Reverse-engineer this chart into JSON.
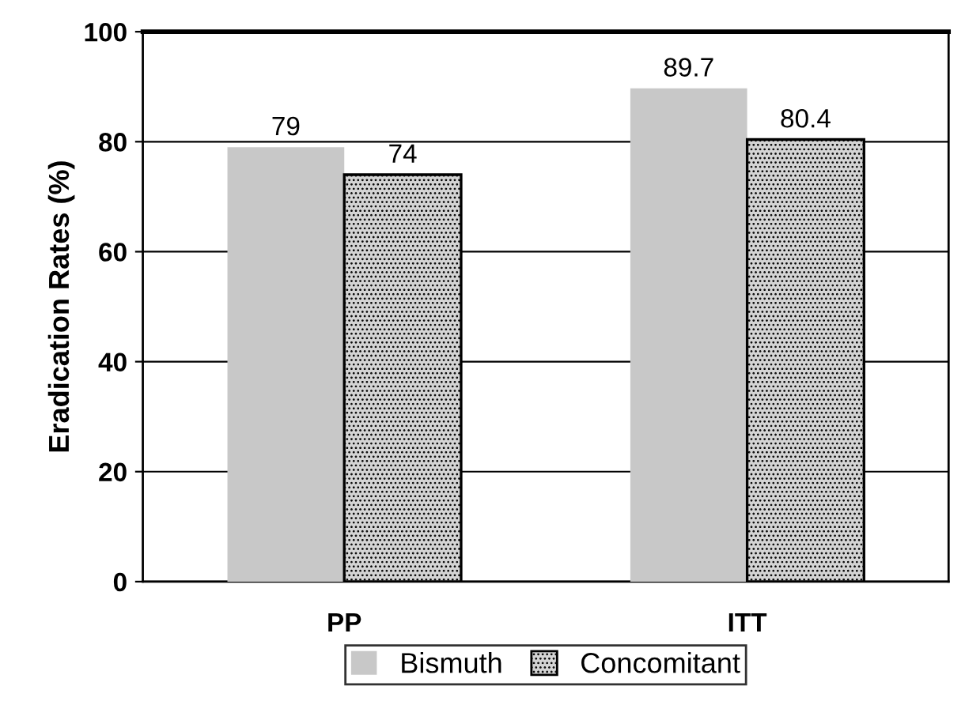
{
  "chart_data": {
    "type": "bar",
    "ylabel": "Eradication Rates (%)",
    "categories": [
      "PP",
      "ITT"
    ],
    "series": [
      {
        "name": "Bismuth",
        "color": "#c8c8c8",
        "values": [
          79,
          89.7
        ]
      },
      {
        "name": "Concomitant",
        "color": "#d4d4d4",
        "values": [
          74,
          80.4
        ]
      }
    ],
    "ylim": [
      0,
      100
    ],
    "yticks": [
      0,
      20,
      40,
      60,
      80,
      100
    ],
    "grid": "y",
    "legend": "bottom",
    "data_labels": true
  }
}
